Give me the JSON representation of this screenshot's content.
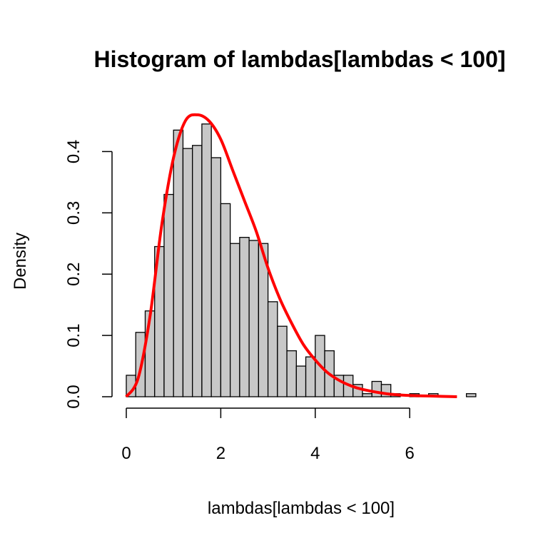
{
  "chart_data": {
    "type": "bar",
    "title": "Histogram of lambdas[lambdas < 100]",
    "xlabel": "lambdas[lambdas < 100]",
    "ylabel": "Density",
    "xlim": [
      0,
      7.4
    ],
    "ylim": [
      0,
      0.46
    ],
    "bin_width": 0.2,
    "bins_start": 0,
    "values": [
      0.035,
      0.105,
      0.14,
      0.245,
      0.33,
      0.435,
      0.405,
      0.41,
      0.445,
      0.39,
      0.315,
      0.25,
      0.26,
      0.255,
      0.25,
      0.155,
      0.115,
      0.075,
      0.05,
      0.065,
      0.1,
      0.075,
      0.035,
      0.035,
      0.02,
      0.005,
      0.025,
      0.02,
      0.005,
      0.0,
      0.005,
      0.0,
      0.005,
      0.0,
      0.0,
      0.0,
      0.005
    ],
    "bar_color": "#c8c8c8",
    "bar_edge_color": "#000000",
    "x_ticks": [
      0,
      2,
      4,
      6
    ],
    "x_tick_labels": [
      "0",
      "2",
      "4",
      "6"
    ],
    "y_ticks": [
      0.0,
      0.1,
      0.2,
      0.3,
      0.4
    ],
    "y_tick_labels": [
      "0.0",
      "0.1",
      "0.2",
      "0.3",
      "0.4"
    ],
    "curve": {
      "color": "#ff0000",
      "x": [
        0.0,
        0.25,
        0.5,
        0.75,
        1.0,
        1.25,
        1.5,
        1.75,
        2.0,
        2.25,
        2.5,
        2.75,
        3.0,
        3.25,
        3.5,
        3.75,
        4.0,
        4.25,
        4.5,
        4.75,
        5.0,
        5.5,
        6.0,
        6.5,
        7.0
      ],
      "y": [
        0.0,
        0.03,
        0.13,
        0.28,
        0.39,
        0.45,
        0.46,
        0.45,
        0.42,
        0.37,
        0.32,
        0.27,
        0.21,
        0.16,
        0.12,
        0.085,
        0.06,
        0.04,
        0.027,
        0.018,
        0.012,
        0.005,
        0.002,
        0.001,
        0.0
      ]
    }
  }
}
